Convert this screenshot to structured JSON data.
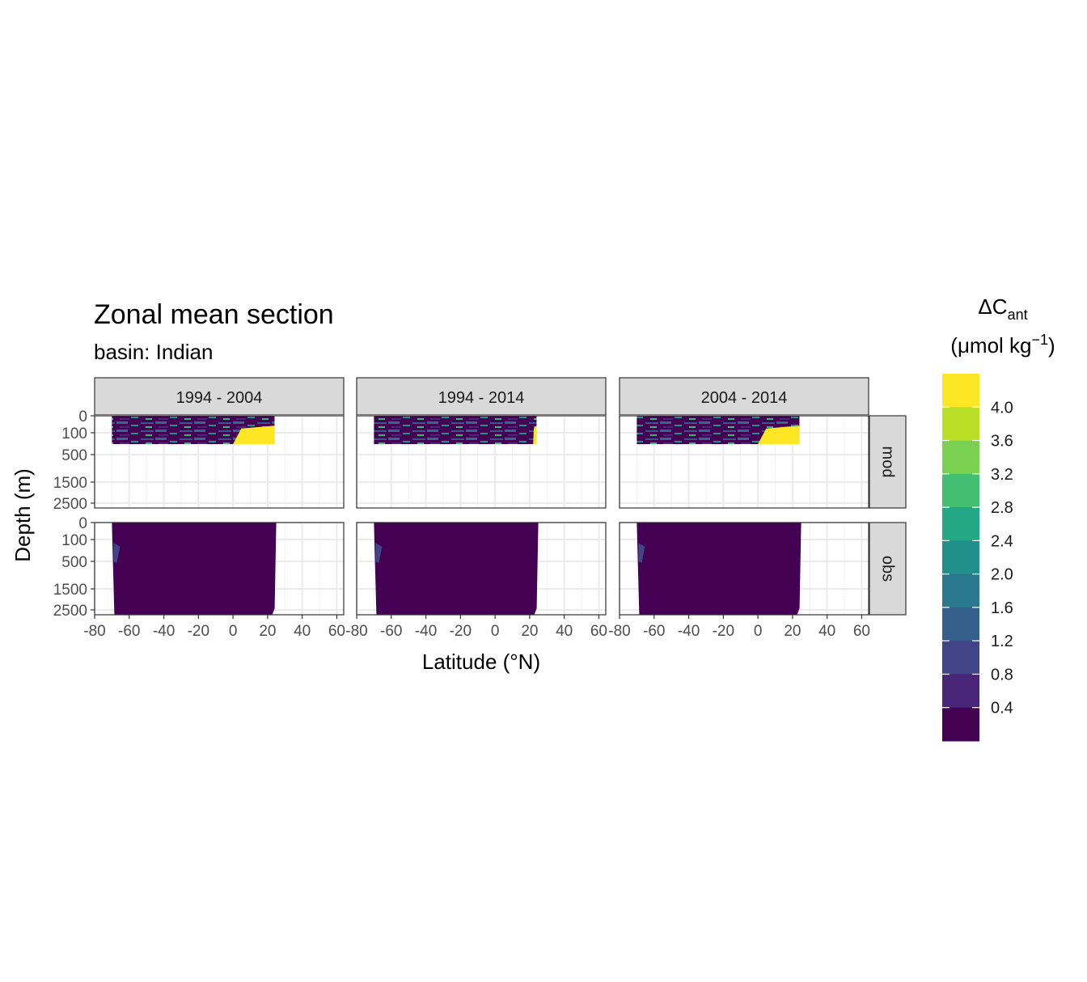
{
  "chart_data": {
    "type": "heatmap",
    "title": "Zonal mean section",
    "subtitle": "basin: Indian",
    "xlabel": "Latitude (°N)",
    "ylabel": "Depth (m)",
    "x_ticks": [
      "-80",
      "-60",
      "-40",
      "-20",
      "0",
      "20",
      "40",
      "60"
    ],
    "x_tick_values": [
      -80,
      -60,
      -40,
      -20,
      0,
      20,
      40,
      60
    ],
    "xlim": [
      -80,
      64
    ],
    "y_ticks": [
      "0",
      "100",
      "500",
      "1500",
      "2500"
    ],
    "y_tick_values": [
      0,
      100,
      500,
      1500,
      2500
    ],
    "y_reversed": true,
    "grid": true,
    "columns": [
      "1994 - 2004",
      "1994 - 2014",
      "2004 - 2014"
    ],
    "rows": [
      "mod",
      "obs"
    ],
    "legend": {
      "title_main": "ΔC",
      "title_sub": "ant",
      "title_units": "(μmol kg",
      "title_units_sup": "−1",
      "title_units_end": ")",
      "position": "right",
      "labels": [
        "4.0",
        "3.6",
        "3.2",
        "2.8",
        "2.4",
        "2.0",
        "1.6",
        "1.2",
        "0.8",
        "0.4"
      ],
      "colors": [
        "#FDE725",
        "#BBDF27",
        "#7AD151",
        "#43BF71",
        "#22A884",
        "#21908D",
        "#2A788E",
        "#35608D",
        "#414487",
        "#482576",
        "#440154"
      ]
    },
    "panels": [
      {
        "column": "1994 - 2004",
        "row": "mod",
        "lat_range": [
          -70,
          24
        ],
        "depth_range": [
          0,
          200
        ],
        "dominant_value": 0.6,
        "high_value_region": {
          "lat_range": [
            0,
            24
          ],
          "value": 4.2
        }
      },
      {
        "column": "1994 - 2014",
        "row": "mod",
        "lat_range": [
          -70,
          24
        ],
        "depth_range": [
          0,
          200
        ],
        "dominant_value": 0.6,
        "high_value_region": {
          "lat_range": [
            22,
            24
          ],
          "value": 4.2
        }
      },
      {
        "column": "2004 - 2014",
        "row": "mod",
        "lat_range": [
          -70,
          24
        ],
        "depth_range": [
          0,
          200
        ],
        "dominant_value": 0.6,
        "high_value_region": {
          "lat_range": [
            0,
            24
          ],
          "value": 4.2
        }
      },
      {
        "column": "1994 - 2004",
        "row": "obs",
        "lat_range": [
          -70,
          25
        ],
        "depth_range": [
          0,
          3000
        ],
        "dominant_value": 0.2
      },
      {
        "column": "1994 - 2014",
        "row": "obs",
        "lat_range": [
          -70,
          25
        ],
        "depth_range": [
          0,
          3000
        ],
        "dominant_value": 0.2
      },
      {
        "column": "2004 - 2014",
        "row": "obs",
        "lat_range": [
          -70,
          25
        ],
        "depth_range": [
          0,
          3000
        ],
        "dominant_value": 0.2
      }
    ]
  }
}
